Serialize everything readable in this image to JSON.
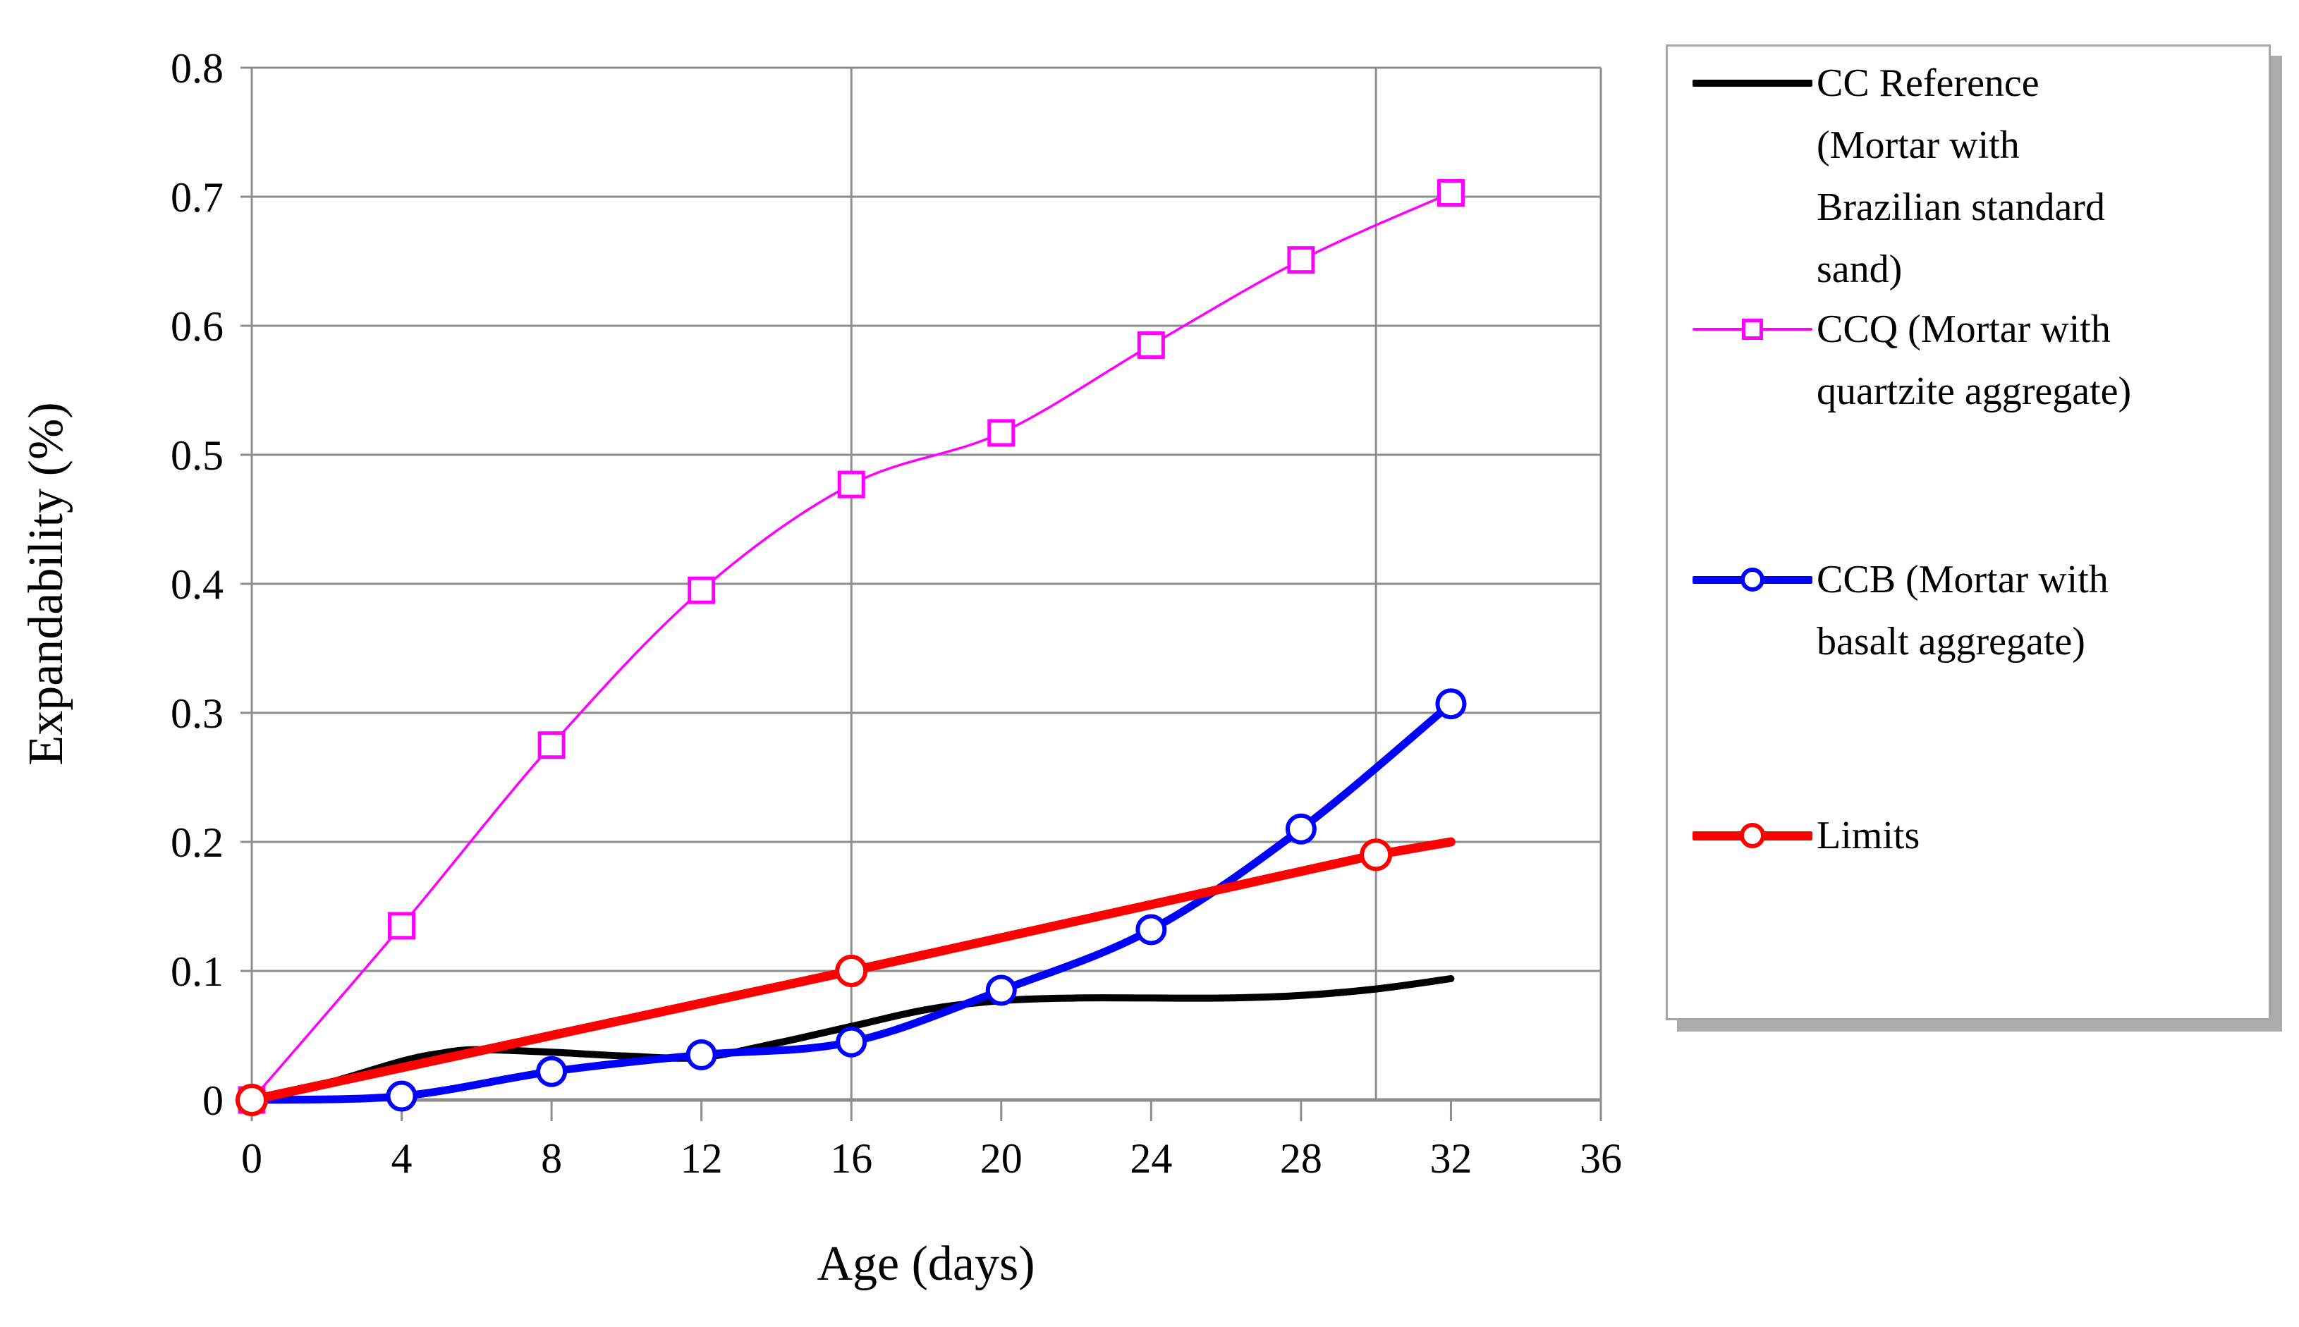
{
  "chart_data": {
    "type": "line",
    "title": "",
    "xlabel": "Age (days)",
    "ylabel": "Expandability (%)",
    "xlim": [
      0,
      36
    ],
    "ylim": [
      0,
      0.8
    ],
    "xticks": [
      0,
      4,
      8,
      12,
      16,
      20,
      24,
      28,
      32,
      36
    ],
    "xtick_labels": [
      "0",
      "4",
      "8",
      "12",
      "16",
      "20",
      "24",
      "28",
      "32",
      "36"
    ],
    "yticks": [
      0,
      0.1,
      0.2,
      0.3,
      0.4,
      0.5,
      0.6,
      0.7,
      0.8
    ],
    "ytick_labels": [
      "0",
      "0.1",
      "0.2",
      "0.3",
      "0.4",
      "0.5",
      "0.6",
      "0.7",
      "0.8"
    ],
    "grid": {
      "horizontal": true,
      "vertical_reference_lines": [
        16,
        30
      ],
      "color": "#8e8e8e"
    },
    "axis_color": "#8e8e8e",
    "legend_position": "right",
    "series": [
      {
        "id": "cc_reference",
        "name": "CC Reference (Mortar with Brazilian standard sand)",
        "color": "#000000",
        "line_width": 10,
        "marker": "none",
        "marker_size": 0,
        "marker_stroke": 0,
        "smooth": true,
        "x": [
          0,
          2,
          4,
          5,
          6,
          8,
          10,
          12,
          14,
          16,
          18,
          20,
          22,
          24,
          26,
          28,
          30,
          32
        ],
        "y": [
          0,
          0.013,
          0.03,
          0.036,
          0.039,
          0.037,
          0.034,
          0.033,
          0.044,
          0.057,
          0.07,
          0.077,
          0.079,
          0.079,
          0.079,
          0.081,
          0.086,
          0.094
        ]
      },
      {
        "id": "ccq",
        "name": "CCQ (Mortar with quartzite aggregate)",
        "color": "#ff00ff",
        "line_width": 3.5,
        "marker": "square",
        "marker_size": 34,
        "marker_stroke": 5,
        "smooth": true,
        "x": [
          0,
          4,
          8,
          12,
          16,
          20,
          24,
          28,
          32
        ],
        "y": [
          0,
          0.135,
          0.275,
          0.395,
          0.477,
          0.517,
          0.585,
          0.651,
          0.703
        ]
      },
      {
        "id": "ccb",
        "name": "CCB (Mortar with basalt aggregate)",
        "color": "#0000ff",
        "line_width": 11,
        "marker": "circle",
        "marker_size": 38,
        "marker_stroke": 6,
        "smooth": true,
        "x": [
          0,
          4,
          8,
          12,
          16,
          20,
          24,
          28,
          32
        ],
        "y": [
          0,
          0.003,
          0.022,
          0.035,
          0.045,
          0.085,
          0.132,
          0.21,
          0.307
        ]
      },
      {
        "id": "limits",
        "name": "Limits",
        "color": "#ff0000",
        "line_width": 13,
        "marker": "circle",
        "marker_size": 40,
        "marker_stroke": 6,
        "smooth": false,
        "x": [
          0,
          16,
          30,
          32
        ],
        "y": [
          0,
          0.1,
          0.19,
          0.2
        ],
        "marker_x": [
          0,
          16,
          30
        ],
        "marker_y": [
          0,
          0.1,
          0.19
        ]
      }
    ],
    "legend": {
      "entries": [
        {
          "series": "cc_reference",
          "lines": [
            "CC Reference",
            "(Mortar with",
            "Brazilian standard",
            "sand)"
          ]
        },
        {
          "series": "ccq",
          "lines": [
            "CCQ (Mortar with",
            "quartzite aggregate)"
          ]
        },
        {
          "series": "ccb",
          "lines": [
            "CCB (Mortar with",
            "basalt aggregate)"
          ]
        },
        {
          "series": "limits",
          "lines": [
            "Limits"
          ]
        }
      ]
    }
  }
}
